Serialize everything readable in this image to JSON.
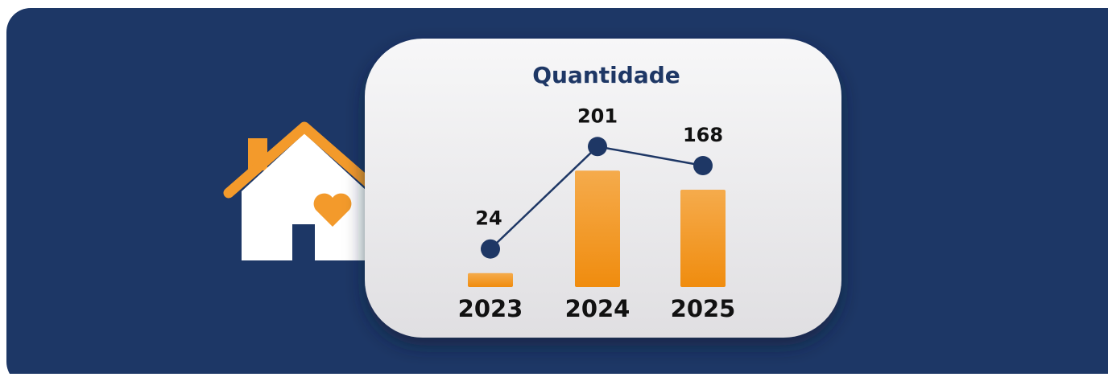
{
  "chart_data": {
    "type": "combo",
    "title": "Quantidade",
    "categories": [
      "2023",
      "2024",
      "2025"
    ],
    "values": [
      24,
      201,
      168
    ],
    "bar_color": "#f39a2b",
    "line_color": "#1e3765"
  }
}
